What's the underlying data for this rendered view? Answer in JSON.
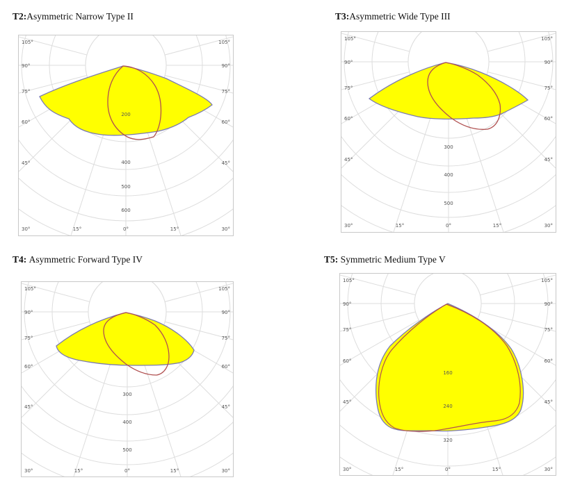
{
  "panels": [
    {
      "id": "t2",
      "code": "T2:",
      "name": "Asymmetric Narrow Type II",
      "angle_labels": {
        "top": "105°",
        "a90": "90°",
        "a75": "75°",
        "a60": "60°",
        "a45": "45°",
        "bottom": "30°",
        "b15": "15°",
        "b0": "0°"
      },
      "radial_labels": [
        "200",
        "400",
        "500",
        "600"
      ]
    },
    {
      "id": "t3",
      "code": "T3:",
      "name": "Asymmetric Wide Type III",
      "angle_labels": {
        "top": "105°",
        "a90": "90°",
        "a75": "75°",
        "a60": "60°",
        "a45": "45°",
        "bottom": "30°",
        "b15": "15°",
        "b0": "0°"
      },
      "radial_labels": [
        "300",
        "400",
        "500"
      ]
    },
    {
      "id": "t4",
      "code": "T4:",
      "name": "Asymmetric Forward Type IV",
      "angle_labels": {
        "top": "105°",
        "a90": "90°",
        "a75": "75°",
        "a60": "60°",
        "a45": "45°",
        "bottom": "30°",
        "b15": "15°",
        "b0": "0°"
      },
      "radial_labels": [
        "300",
        "400",
        "500"
      ]
    },
    {
      "id": "t5",
      "code": "T5:",
      "name": "Symmetric Medium Type V",
      "angle_labels": {
        "top": "105°",
        "a90": "90°",
        "a75": "75°",
        "a60": "60°",
        "a45": "45°",
        "bottom": "30°",
        "b15": "15°",
        "b0": "0°"
      },
      "radial_labels": [
        "160",
        "240",
        "320"
      ]
    }
  ],
  "colors": {
    "fill": "#ffff00",
    "outline": "#7b7bb0",
    "curve": "#b05050",
    "grid": "#dddddd",
    "frame": "#c8c8c8",
    "label": "#555555"
  }
}
